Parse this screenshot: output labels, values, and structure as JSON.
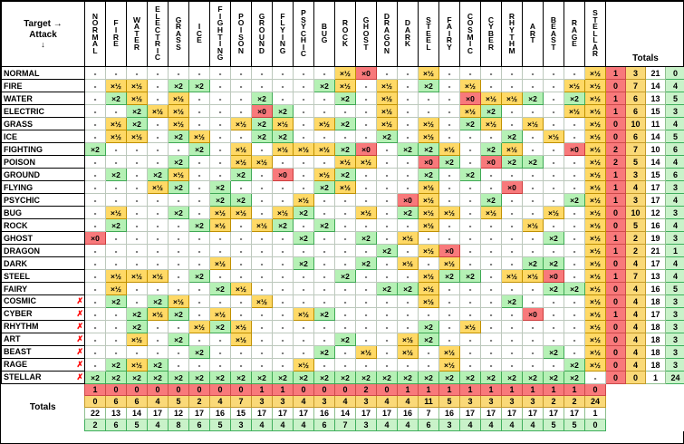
{
  "corner": {
    "target_label": "Target →",
    "attack_label": "Attack",
    "attack_arrow": "↓"
  },
  "totals_header_label": "Totals",
  "totals_footer_label": "Totals",
  "cross_mark": "✗",
  "types": [
    "NORMAL",
    "FIRE",
    "WATER",
    "ELECTRIC",
    "GRASS",
    "ICE",
    "FIGHTING",
    "POISON",
    "GROUND",
    "FLYING",
    "PSYCHIC",
    "BUG",
    "ROCK",
    "GHOST",
    "DRAGON",
    "DARK",
    "STEEL",
    "FAIRY",
    "COSMIC",
    "CYBER",
    "RHYTHM",
    "ART",
    "BEAST",
    "RAGE",
    "STELLAR"
  ],
  "cross_rows": [
    "COSMIC",
    "CYBER",
    "RHYTHM",
    "ART",
    "BEAST",
    "RAGE",
    "STELLAR"
  ],
  "display_map": {
    "-": "-",
    "h": "×½",
    "2": "×2",
    "0": "×0"
  },
  "matrix_rows": [
    {
      "attacker": "NORMAL",
      "cells": "------------h0--h-------h",
      "totals": [
        1,
        3,
        21,
        0
      ]
    },
    {
      "attacker": "FIRE",
      "cells": "-hh-22-----2h-h-2-h----hh",
      "totals": [
        0,
        7,
        14,
        4
      ]
    },
    {
      "attacker": "WATER",
      "cells": "-2h-h---2---2-h---0hh2-2h",
      "totals": [
        1,
        6,
        13,
        5
      ]
    },
    {
      "attacker": "ELECTRIC",
      "cells": "--2hh---02----h---h2---hh",
      "totals": [
        1,
        6,
        15,
        3
      ]
    },
    {
      "attacker": "GRASS",
      "cells": "-h2-h--h2h-h2-h-h-2h-h--h",
      "totals": [
        0,
        10,
        11,
        4
      ]
    },
    {
      "attacker": "ICE",
      "cells": "-hh-2h--22----2-h---2-h-h",
      "totals": [
        0,
        6,
        14,
        5
      ]
    },
    {
      "attacker": "FIGHTING",
      "cells": "2----2-h-hhh20-22h-2h--0h",
      "totals": [
        2,
        7,
        10,
        6
      ]
    },
    {
      "attacker": "POISON",
      "cells": "----2--hh---hh--02-022--h",
      "totals": [
        2,
        5,
        14,
        4
      ]
    },
    {
      "attacker": "GROUND",
      "cells": "-2-2h--2-0-h2---2-2-----h",
      "totals": [
        1,
        3,
        15,
        6
      ]
    },
    {
      "attacker": "FLYING",
      "cells": "---h2-2----2h---h---0---h",
      "totals": [
        1,
        4,
        17,
        3
      ]
    },
    {
      "attacker": "PSYCHIC",
      "cells": "------22--h----0h--2---2h",
      "totals": [
        1,
        3,
        17,
        4
      ]
    },
    {
      "attacker": "BUG",
      "cells": "-h--2-hh-h2--h-2hh-h--h-h",
      "totals": [
        0,
        10,
        12,
        3
      ]
    },
    {
      "attacker": "ROCK",
      "cells": "-2---2h-h2-2----h----h--h",
      "totals": [
        0,
        5,
        16,
        4
      ]
    },
    {
      "attacker": "GHOST",
      "cells": "0---------2--2-h------2-h",
      "totals": [
        1,
        2,
        19,
        3
      ]
    },
    {
      "attacker": "DRAGON",
      "cells": "--------------2-h0------h",
      "totals": [
        1,
        2,
        21,
        1
      ]
    },
    {
      "attacker": "DARK",
      "cells": "------h---2--2-h-h---22-h",
      "totals": [
        0,
        4,
        17,
        4
      ]
    },
    {
      "attacker": "STEEL",
      "cells": "-hhh-2------2---h22-hh0-h",
      "totals": [
        1,
        7,
        13,
        4
      ]
    },
    {
      "attacker": "FAIRY",
      "cells": "-h----2h------22h-----22h",
      "totals": [
        0,
        4,
        16,
        5
      ]
    },
    {
      "attacker": "COSMIC",
      "cells": "-2-2h---h-------h---2---h",
      "totals": [
        0,
        4,
        18,
        3
      ]
    },
    {
      "attacker": "CYBER",
      "cells": "--2h2-h---h2---------0--h",
      "totals": [
        1,
        4,
        17,
        3
      ]
    },
    {
      "attacker": "RHYTHM",
      "cells": "--2--h2h--------2-h-----h",
      "totals": [
        0,
        4,
        18,
        3
      ]
    },
    {
      "attacker": "ART",
      "cells": "--h-2--h----2--h2-------h",
      "totals": [
        0,
        4,
        18,
        3
      ]
    },
    {
      "attacker": "BEAST",
      "cells": "-----2-----2-h-h-h----2-h",
      "totals": [
        0,
        4,
        18,
        3
      ]
    },
    {
      "attacker": "RAGE",
      "cells": "-2h2------h------h-----2h",
      "totals": [
        0,
        4,
        18,
        3
      ]
    },
    {
      "attacker": "STELLAR",
      "cells": "222222222222222222222222-",
      "totals": [
        0,
        0,
        1,
        24
      ]
    }
  ],
  "column_totals": {
    "zero": [
      1,
      0,
      0,
      0,
      0,
      0,
      0,
      0,
      1,
      1,
      0,
      0,
      0,
      2,
      0,
      1,
      1,
      1,
      1,
      1,
      1,
      1,
      1,
      1,
      0
    ],
    "half": [
      0,
      6,
      6,
      4,
      5,
      2,
      4,
      7,
      3,
      3,
      4,
      3,
      4,
      3,
      4,
      4,
      11,
      5,
      3,
      3,
      3,
      3,
      2,
      2,
      24
    ],
    "neutral": [
      22,
      13,
      14,
      17,
      12,
      17,
      16,
      15,
      17,
      17,
      17,
      16,
      14,
      17,
      17,
      16,
      7,
      16,
      17,
      17,
      17,
      17,
      17,
      17,
      1
    ],
    "double": [
      2,
      6,
      5,
      4,
      8,
      6,
      5,
      3,
      4,
      4,
      4,
      6,
      7,
      3,
      4,
      4,
      6,
      3,
      4,
      4,
      4,
      4,
      5,
      5,
      0
    ]
  },
  "colors": {
    "half_bg": "#FFD966",
    "half_border": "#BF9000",
    "double_bg": "#B5F1B5",
    "double_border": "#3FA854",
    "zero_bg": "#F8797B",
    "zero_border": "#CC3B3B",
    "neutral_border": "#BCC8BC",
    "totals_red_bg": "#F8797B",
    "totals_red_border": "#CC4A4A",
    "totals_orange_bg": "#FAD978",
    "totals_orange_border": "#C49A2A",
    "totals_white_border": "#8FBF8F",
    "totals_green_bg": "#C9F2C9",
    "totals_green_border": "#3FAE5C",
    "cross_color": "#FF0000"
  }
}
